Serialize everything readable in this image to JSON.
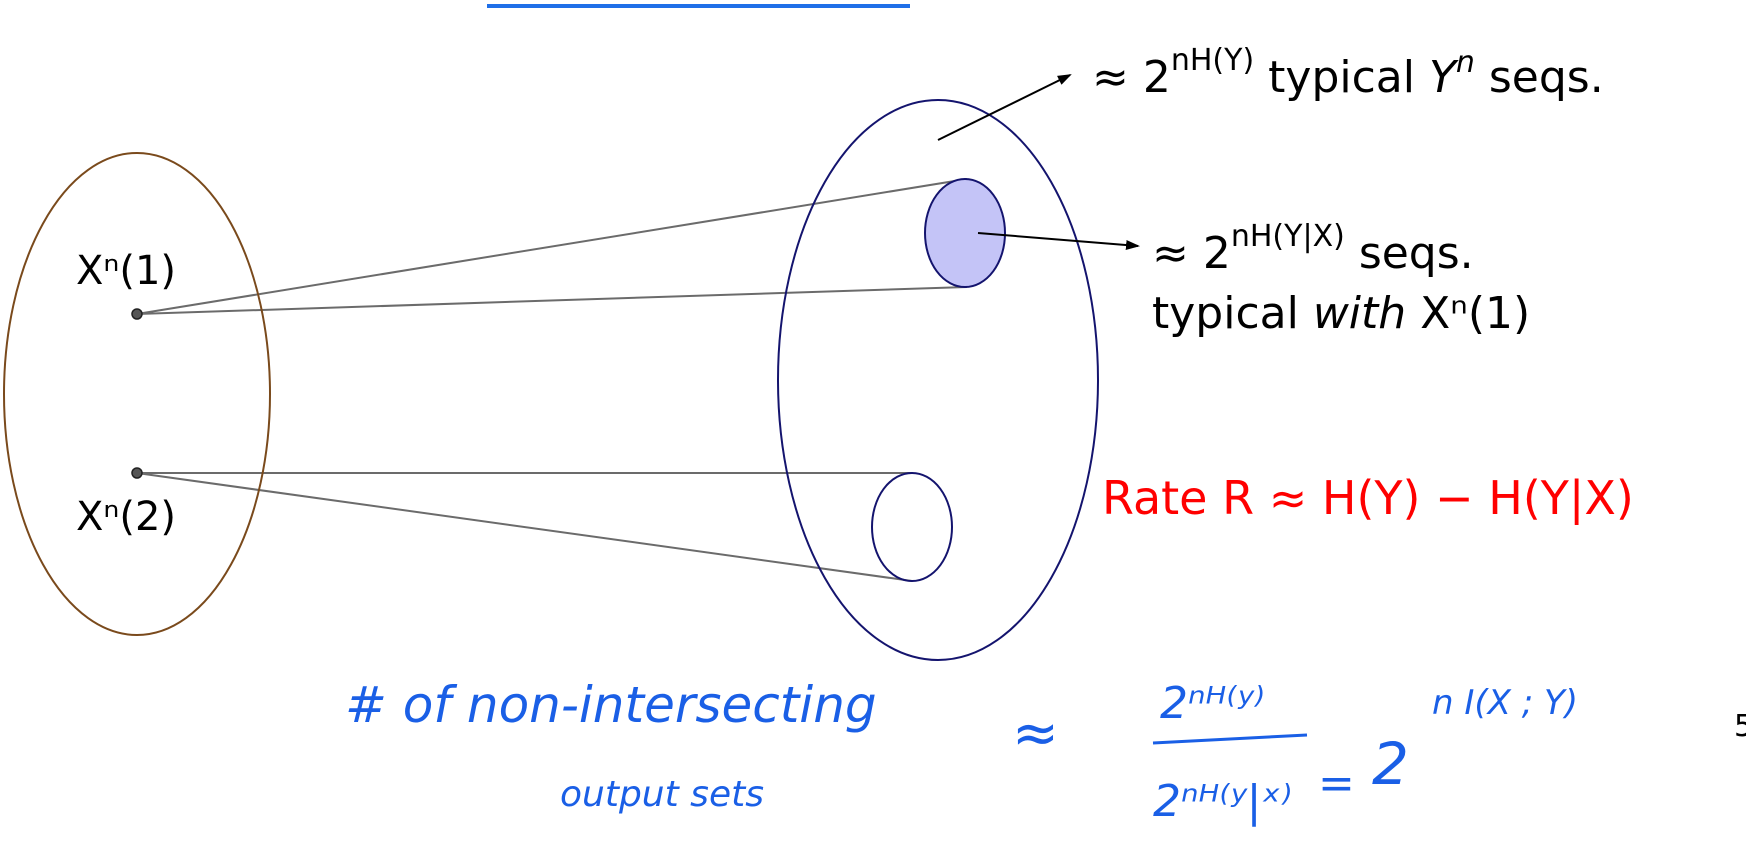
{
  "colors": {
    "input_set": "#7a4a1c",
    "output_set": "#14146e",
    "fan_lines": "#6b6b6b",
    "highlight_fill": "#c4c4f7",
    "rate": "#ff0000",
    "handwriting": "#1a5fe6",
    "top_bar": "#1f6fe8"
  },
  "input_points": {
    "p1": "Xⁿ(1)",
    "p2": "Xⁿ(2)"
  },
  "annotations": {
    "typical_y": {
      "approx": "≈ 2",
      "exp": "nH(Y)",
      "rest_a": " typical ",
      "var": "Y",
      "var_sup": "n",
      "rest_b": " seqs."
    },
    "conditional": {
      "approx": "≈ 2",
      "exp": "nH(Y|X)",
      "rest": " seqs.",
      "line2_a": "typical ",
      "line2_em": "with",
      "line2_b": " Xⁿ(1)"
    },
    "rate": {
      "word": "Rate ",
      "formula": "R ≈ H(Y) − H(Y|X)"
    }
  },
  "handwritten": {
    "line1": "# of non-intersecting",
    "line2": "output sets",
    "approx": "≈",
    "numerator": "2ⁿᴴ⁽ʸ⁾",
    "denominator": "2ⁿᴴ⁽ʸ|ˣ⁾",
    "equals": "=",
    "result_base": "2",
    "result_exp": "n I(X ; Y)"
  },
  "page_number": "5"
}
